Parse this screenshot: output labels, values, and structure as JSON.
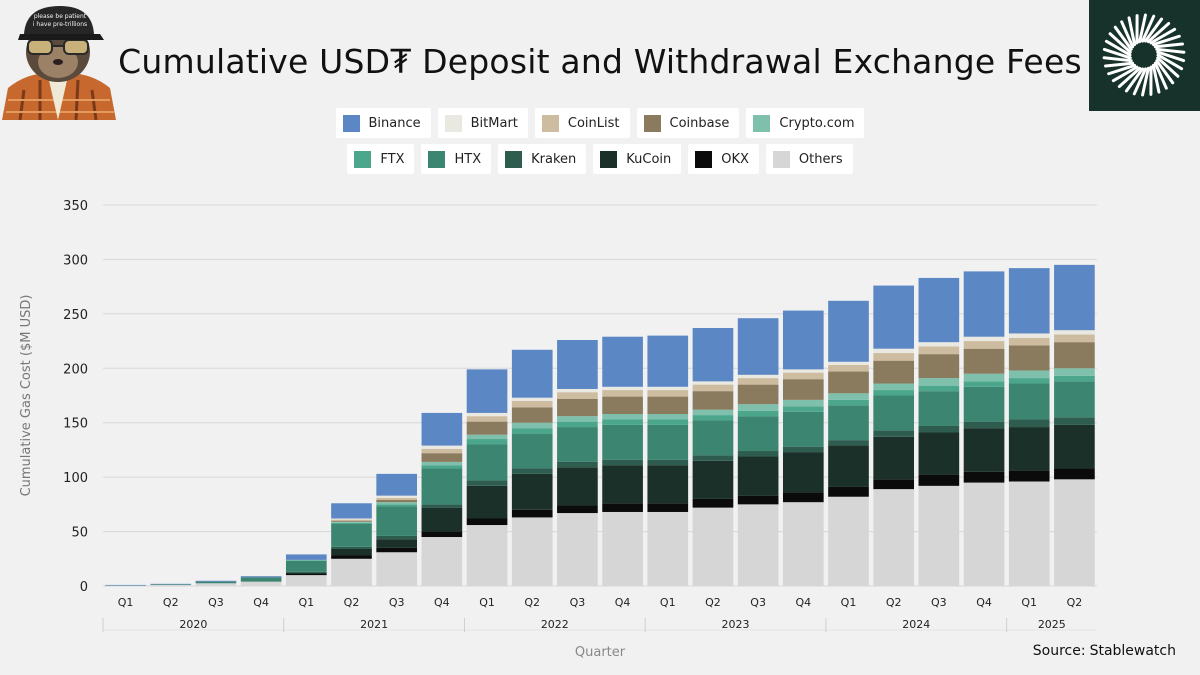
{
  "header": {
    "title": "Cumulative USD₮ Deposit and Withdrawal Exchange Fees",
    "mascot_cap_text": [
      "please be patient",
      "i have pre-trillions"
    ]
  },
  "source": {
    "label": "Source:",
    "value": "Stablewatch"
  },
  "icons": {
    "mascot": "sloth-mascot-icon",
    "brand": "sunburst-logo-icon"
  },
  "chart_data": {
    "type": "bar",
    "stacked": true,
    "xlabel": "Quarter",
    "ylabel": "Cumulative Gas Cost ($M USD)",
    "ylim": [
      0,
      350
    ],
    "yticks": [
      0,
      50,
      100,
      150,
      200,
      250,
      300,
      350
    ],
    "grid": true,
    "legend_position": "top-center",
    "categories": [
      "Q1",
      "Q2",
      "Q3",
      "Q4",
      "Q1",
      "Q2",
      "Q3",
      "Q4",
      "Q1",
      "Q2",
      "Q3",
      "Q4",
      "Q1",
      "Q2",
      "Q3",
      "Q4",
      "Q1",
      "Q2",
      "Q3",
      "Q4",
      "Q1",
      "Q2"
    ],
    "years": [
      {
        "label": "2020",
        "start": 0,
        "end": 3
      },
      {
        "label": "2021",
        "start": 4,
        "end": 7
      },
      {
        "label": "2022",
        "start": 8,
        "end": 11
      },
      {
        "label": "2023",
        "start": 12,
        "end": 15
      },
      {
        "label": "2024",
        "start": 16,
        "end": 19
      },
      {
        "label": "2025",
        "start": 20,
        "end": 21
      }
    ],
    "stack_order": [
      "Others",
      "OKX",
      "KuCoin",
      "Kraken",
      "HTX",
      "FTX",
      "Crypto.com",
      "Coinbase",
      "CoinList",
      "BitMart",
      "Binance"
    ],
    "legend_rows": [
      [
        "Binance",
        "BitMart",
        "CoinList",
        "Coinbase",
        "Crypto.com"
      ],
      [
        "FTX",
        "HTX",
        "Kraken",
        "KuCoin",
        "OKX",
        "Others"
      ]
    ],
    "series": [
      {
        "name": "Binance",
        "color": "#5b87c5",
        "values": [
          0.2,
          0.4,
          0.8,
          1,
          5,
          14,
          20,
          30,
          40,
          44,
          45,
          46,
          47,
          49,
          52,
          54,
          56,
          58,
          59,
          60,
          60,
          60
        ]
      },
      {
        "name": "BitMart",
        "color": "#e9e8e1",
        "values": [
          0,
          0,
          0,
          0,
          0,
          1,
          2,
          3,
          3,
          3,
          3,
          3,
          3,
          3,
          3,
          3,
          3,
          4,
          4,
          4,
          4,
          4
        ]
      },
      {
        "name": "CoinList",
        "color": "#cdbc9f",
        "values": [
          0,
          0,
          0,
          0,
          0,
          1,
          2,
          4,
          5,
          6,
          6,
          6,
          6,
          6,
          6,
          6,
          6,
          7,
          7,
          7,
          7,
          7
        ]
      },
      {
        "name": "Coinbase",
        "color": "#8a7a5e",
        "values": [
          0,
          0,
          0,
          0,
          0,
          1,
          2,
          8,
          12,
          14,
          16,
          16,
          16,
          17,
          18,
          19,
          20,
          21,
          22,
          23,
          23,
          24
        ]
      },
      {
        "name": "Crypto.com",
        "color": "#7ec0ac",
        "values": [
          0,
          0,
          0,
          0,
          0.5,
          1,
          2,
          3,
          4,
          5,
          5,
          5,
          5,
          5,
          6,
          6,
          6,
          6,
          7,
          7,
          7,
          7
        ]
      },
      {
        "name": "FTX",
        "color": "#4ca68c",
        "values": [
          0,
          0,
          0,
          0,
          0.5,
          1,
          2,
          3,
          5,
          5,
          5,
          5,
          5,
          5,
          5,
          5,
          5,
          5,
          5,
          5,
          5,
          5
        ]
      },
      {
        "name": "HTX",
        "color": "#3c8570",
        "values": [
          0.3,
          0.6,
          1.5,
          4,
          10,
          21,
          27,
          33,
          33,
          32,
          32,
          32,
          32,
          32,
          32,
          32,
          32,
          32,
          32,
          32,
          33,
          33
        ]
      },
      {
        "name": "Kraken",
        "color": "#2e5d50",
        "values": [
          0,
          0,
          0,
          0,
          1,
          2,
          3,
          3,
          5,
          5,
          5,
          5,
          5,
          5,
          5,
          5,
          5,
          6,
          6,
          6,
          7,
          7
        ]
      },
      {
        "name": "KuCoin",
        "color": "#1b3028",
        "values": [
          0,
          0,
          0,
          0,
          1,
          6,
          8,
          22,
          30,
          33,
          35,
          35,
          35,
          35,
          36,
          37,
          38,
          39,
          39,
          40,
          40,
          40
        ]
      },
      {
        "name": "OKX",
        "color": "#0b0b0b",
        "values": [
          0,
          0,
          0,
          0,
          1,
          3,
          4,
          5,
          6,
          7,
          7,
          8,
          8,
          8,
          8,
          9,
          9,
          9,
          10,
          10,
          10,
          10
        ]
      },
      {
        "name": "Others",
        "color": "#d6d6d6",
        "values": [
          0.5,
          1,
          2.5,
          4,
          10,
          25,
          31,
          45,
          56,
          63,
          67,
          68,
          68,
          72,
          75,
          77,
          82,
          89,
          92,
          95,
          96,
          98
        ]
      }
    ]
  }
}
